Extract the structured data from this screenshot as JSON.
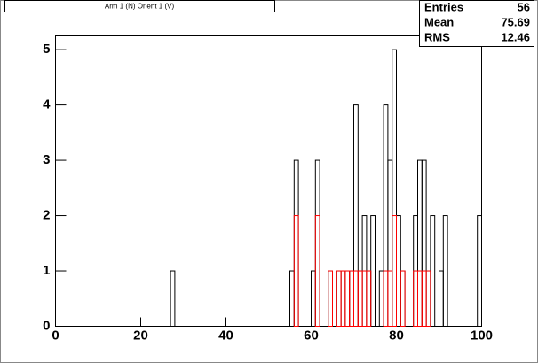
{
  "chart_data": {
    "type": "histogram",
    "title": "Arm 1 (N) Orient 1 (V)",
    "bins": [
      0,
      1,
      2,
      3,
      4,
      5,
      6,
      7,
      8,
      9,
      10,
      11,
      12,
      13,
      14,
      15,
      16,
      17,
      18,
      19,
      20,
      21,
      22,
      23,
      24,
      25,
      26,
      27,
      28,
      29,
      30,
      31,
      32,
      33,
      34,
      35,
      36,
      37,
      38,
      39,
      40,
      41,
      42,
      43,
      44,
      45,
      46,
      47,
      48,
      49,
      50,
      51,
      52,
      53,
      54,
      55,
      56,
      57,
      58,
      59,
      60,
      61,
      62,
      63,
      64,
      65,
      66,
      67,
      68,
      69,
      70,
      71,
      72,
      73,
      74,
      75,
      76,
      77,
      78,
      79,
      80,
      81,
      82,
      83,
      84,
      85,
      86,
      87,
      88,
      89,
      90,
      91,
      92,
      93,
      94,
      95,
      96,
      97,
      98,
      99,
      100
    ],
    "series": [
      {
        "color": "#000000",
        "values": [
          0,
          0,
          0,
          0,
          0,
          0,
          0,
          0,
          0,
          0,
          0,
          0,
          0,
          0,
          0,
          0,
          0,
          0,
          0,
          0,
          0,
          0,
          0,
          0,
          0,
          0,
          0,
          1,
          0,
          0,
          0,
          0,
          0,
          0,
          0,
          0,
          0,
          0,
          0,
          0,
          0,
          0,
          0,
          0,
          0,
          0,
          0,
          0,
          0,
          0,
          0,
          0,
          0,
          0,
          0,
          1,
          3,
          0,
          0,
          0,
          1,
          3,
          0,
          0,
          1,
          0,
          1,
          1,
          1,
          1,
          4,
          1,
          2,
          1,
          2,
          0,
          1,
          4,
          3,
          5,
          2,
          1,
          0,
          0,
          2,
          3,
          3,
          1,
          2,
          0,
          1,
          2,
          0,
          0,
          0,
          0,
          0,
          0,
          0,
          2
        ]
      },
      {
        "color": "#ff0000",
        "values": [
          0,
          0,
          0,
          0,
          0,
          0,
          0,
          0,
          0,
          0,
          0,
          0,
          0,
          0,
          0,
          0,
          0,
          0,
          0,
          0,
          0,
          0,
          0,
          0,
          0,
          0,
          0,
          0,
          0,
          0,
          0,
          0,
          0,
          0,
          0,
          0,
          0,
          0,
          0,
          0,
          0,
          0,
          0,
          0,
          0,
          0,
          0,
          0,
          0,
          0,
          0,
          0,
          0,
          0,
          0,
          0,
          2,
          0,
          0,
          0,
          0,
          2,
          0,
          0,
          1,
          0,
          1,
          1,
          1,
          1,
          1,
          1,
          1,
          1,
          0,
          0,
          0,
          1,
          1,
          2,
          0,
          1,
          0,
          0,
          1,
          1,
          1,
          1,
          0,
          0,
          0,
          0,
          0,
          0,
          0,
          0,
          0,
          0,
          0,
          0
        ]
      }
    ],
    "xlim": [
      0,
      100
    ],
    "xticks": [
      0,
      20,
      40,
      60,
      80,
      100
    ],
    "ylim": [
      0,
      5.25
    ],
    "yticks": [
      0,
      1,
      2,
      3,
      4,
      5
    ],
    "stats": [
      {
        "label": "Entries",
        "value": 56
      },
      {
        "label": "Mean",
        "value": 75.69
      },
      {
        "label": "RMS",
        "value": 12.46
      }
    ]
  }
}
